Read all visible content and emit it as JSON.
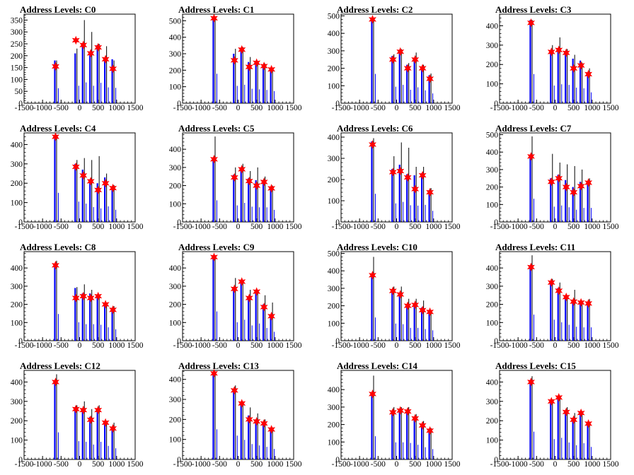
{
  "figure": {
    "background": "#ffffff"
  },
  "chart_data": [
    {
      "type": "bar",
      "title": "Address Levels: C0",
      "xlim": [
        -1500,
        1500
      ],
      "ylim": [
        0,
        375
      ],
      "yticks": [
        0,
        50,
        100,
        150,
        200,
        250,
        300,
        350
      ],
      "xticks": [
        -1500,
        -1000,
        -500,
        0,
        500,
        1000,
        1500
      ],
      "x": [
        -650,
        -100,
        100,
        300,
        500,
        700,
        900
      ],
      "peaks": [
        180,
        230,
        350,
        300,
        250,
        240,
        180
      ],
      "blue": [
        180,
        210,
        250,
        210,
        245,
        190,
        185
      ],
      "markers": [
        155,
        265,
        245,
        210,
        235,
        185,
        145
      ]
    },
    {
      "type": "bar",
      "title": "Address Levels: C1",
      "xlim": [
        -1500,
        1500
      ],
      "ylim": [
        0,
        540
      ],
      "yticks": [
        0,
        100,
        200,
        300,
        400,
        500
      ],
      "xticks": [
        -1500,
        -1000,
        -500,
        0,
        500,
        1000,
        1500
      ],
      "x": [
        -650,
        -100,
        100,
        300,
        500,
        700,
        900
      ],
      "peaks": [
        510,
        330,
        340,
        280,
        250,
        240,
        215
      ],
      "blue": [
        510,
        300,
        320,
        250,
        240,
        230,
        210
      ],
      "markers": [
        515,
        260,
        325,
        220,
        245,
        225,
        205
      ]
    },
    {
      "type": "bar",
      "title": "Address Levels: C2",
      "xlim": [
        -1500,
        1500
      ],
      "ylim": [
        0,
        510
      ],
      "yticks": [
        0,
        100,
        200,
        300,
        400,
        500
      ],
      "xticks": [
        -1500,
        -1000,
        -500,
        0,
        500,
        1000,
        1500
      ],
      "x": [
        -650,
        -100,
        100,
        300,
        500,
        700,
        900
      ],
      "peaks": [
        480,
        280,
        310,
        230,
        290,
        220,
        170
      ],
      "blue": [
        480,
        270,
        300,
        220,
        260,
        210,
        160
      ],
      "markers": [
        480,
        250,
        295,
        200,
        250,
        200,
        140
      ]
    },
    {
      "type": "bar",
      "title": "Address Levels: C3",
      "xlim": [
        -1500,
        1500
      ],
      "ylim": [
        0,
        460
      ],
      "yticks": [
        0,
        100,
        200,
        300,
        400
      ],
      "xticks": [
        -1500,
        -1000,
        -500,
        0,
        500,
        1000,
        1500
      ],
      "x": [
        -650,
        -100,
        100,
        300,
        500,
        700,
        900
      ],
      "peaks": [
        430,
        300,
        340,
        280,
        250,
        210,
        180
      ],
      "blue": [
        430,
        260,
        280,
        270,
        230,
        220,
        160
      ],
      "markers": [
        415,
        265,
        275,
        260,
        180,
        195,
        150
      ]
    },
    {
      "type": "bar",
      "title": "Address Levels: C4",
      "xlim": [
        -1500,
        1500
      ],
      "ylim": [
        0,
        460
      ],
      "yticks": [
        0,
        100,
        200,
        300,
        400
      ],
      "xticks": [
        -1500,
        -1000,
        -500,
        0,
        500,
        1000,
        1500
      ],
      "x": [
        -650,
        -100,
        100,
        300,
        500,
        700,
        900
      ],
      "peaks": [
        450,
        320,
        330,
        320,
        340,
        250,
        190
      ],
      "blue": [
        430,
        300,
        270,
        220,
        200,
        230,
        180
      ],
      "markers": [
        440,
        285,
        240,
        210,
        165,
        200,
        175
      ]
    },
    {
      "type": "bar",
      "title": "Address Levels: C5",
      "xlim": [
        -1500,
        1500
      ],
      "ylim": [
        0,
        490
      ],
      "yticks": [
        0,
        100,
        200,
        300,
        400
      ],
      "xticks": [
        -1500,
        -1000,
        -500,
        0,
        500,
        1000,
        1500
      ],
      "x": [
        -650,
        -100,
        100,
        300,
        500,
        700,
        900
      ],
      "peaks": [
        470,
        300,
        320,
        280,
        300,
        250,
        200
      ],
      "blue": [
        340,
        260,
        300,
        240,
        230,
        230,
        190
      ],
      "markers": [
        345,
        245,
        290,
        225,
        200,
        220,
        185
      ]
    },
    {
      "type": "bar",
      "title": "Address Levels: C6",
      "xlim": [
        -1500,
        1500
      ],
      "ylim": [
        0,
        420
      ],
      "yticks": [
        0,
        100,
        200,
        300,
        400
      ],
      "xticks": [
        -1500,
        -1000,
        -500,
        0,
        500,
        1000,
        1500
      ],
      "x": [
        -650,
        -100,
        100,
        300,
        500,
        700,
        900
      ],
      "peaks": [
        395,
        310,
        375,
        350,
        260,
        260,
        160
      ],
      "blue": [
        380,
        250,
        270,
        225,
        220,
        230,
        150
      ],
      "markers": [
        365,
        235,
        240,
        210,
        155,
        220,
        140
      ]
    },
    {
      "type": "bar",
      "title": "Address Levels: C7",
      "xlim": [
        -1500,
        1500
      ],
      "ylim": [
        0,
        510
      ],
      "yticks": [
        0,
        100,
        200,
        300,
        400,
        500
      ],
      "xticks": [
        -1500,
        -1000,
        -500,
        0,
        500,
        1000,
        1500
      ],
      "x": [
        -650,
        -100,
        100,
        300,
        500,
        700,
        900
      ],
      "peaks": [
        490,
        390,
        340,
        330,
        320,
        300,
        250
      ],
      "blue": [
        380,
        250,
        270,
        240,
        200,
        230,
        230
      ],
      "markers": [
        375,
        230,
        250,
        200,
        170,
        205,
        225
      ]
    },
    {
      "type": "bar",
      "title": "Address Levels: C8",
      "xlim": [
        -1500,
        1500
      ],
      "ylim": [
        0,
        490
      ],
      "yticks": [
        0,
        100,
        200,
        300,
        400
      ],
      "xticks": [
        -1500,
        -1000,
        -500,
        0,
        500,
        1000,
        1500
      ],
      "x": [
        -650,
        -100,
        100,
        300,
        500,
        700,
        900
      ],
      "peaks": [
        440,
        295,
        310,
        280,
        240,
        210,
        190
      ],
      "blue": [
        420,
        290,
        260,
        260,
        250,
        210,
        180
      ],
      "markers": [
        415,
        235,
        245,
        235,
        245,
        200,
        170
      ]
    },
    {
      "type": "bar",
      "title": "Address Levels: C9",
      "xlim": [
        -1500,
        1500
      ],
      "ylim": [
        0,
        490
      ],
      "yticks": [
        0,
        100,
        200,
        300,
        400
      ],
      "xticks": [
        -1500,
        -1000,
        -500,
        0,
        500,
        1000,
        1500
      ],
      "x": [
        -650,
        -100,
        100,
        300,
        500,
        700,
        900
      ],
      "peaks": [
        470,
        345,
        330,
        280,
        270,
        250,
        210
      ],
      "blue": [
        460,
        290,
        330,
        240,
        270,
        200,
        140
      ],
      "markers": [
        460,
        285,
        325,
        235,
        270,
        185,
        135
      ]
    },
    {
      "type": "bar",
      "title": "Address Levels: C10",
      "xlim": [
        -1500,
        1500
      ],
      "ylim": [
        0,
        510
      ],
      "yticks": [
        0,
        100,
        200,
        300,
        400,
        500
      ],
      "xticks": [
        -1500,
        -1000,
        -500,
        0,
        500,
        1000,
        1500
      ],
      "x": [
        -650,
        -100,
        100,
        300,
        500,
        700,
        900
      ],
      "peaks": [
        480,
        310,
        310,
        240,
        240,
        230,
        170
      ],
      "blue": [
        380,
        280,
        270,
        210,
        210,
        190,
        170
      ],
      "markers": [
        375,
        285,
        265,
        200,
        205,
        175,
        165
      ]
    },
    {
      "type": "bar",
      "title": "Address Levels: C11",
      "xlim": [
        -1500,
        1500
      ],
      "ylim": [
        0,
        490
      ],
      "yticks": [
        0,
        100,
        200,
        300,
        400
      ],
      "xticks": [
        -1500,
        -1000,
        -500,
        0,
        500,
        1000,
        1500
      ],
      "x": [
        -650,
        -100,
        100,
        300,
        500,
        700,
        900
      ],
      "peaks": [
        470,
        340,
        320,
        250,
        280,
        220,
        230
      ],
      "blue": [
        410,
        330,
        290,
        250,
        220,
        210,
        210
      ],
      "markers": [
        405,
        320,
        275,
        240,
        215,
        210,
        205
      ]
    },
    {
      "type": "bar",
      "title": "Address Levels: C12",
      "xlim": [
        -1500,
        1500
      ],
      "ylim": [
        0,
        460
      ],
      "yticks": [
        0,
        100,
        200,
        300,
        400
      ],
      "xticks": [
        -1500,
        -1000,
        -500,
        0,
        500,
        1000,
        1500
      ],
      "x": [
        -650,
        -100,
        100,
        300,
        500,
        700,
        900
      ],
      "peaks": [
        440,
        280,
        300,
        260,
        280,
        190,
        190
      ],
      "blue": [
        400,
        270,
        260,
        220,
        260,
        200,
        165
      ],
      "markers": [
        400,
        260,
        255,
        205,
        255,
        190,
        160
      ]
    },
    {
      "type": "bar",
      "title": "Address Levels: C13",
      "xlim": [
        -1500,
        1500
      ],
      "ylim": [
        0,
        445
      ],
      "yticks": [
        0,
        100,
        200,
        300,
        400
      ],
      "xticks": [
        -1500,
        -1000,
        -500,
        0,
        500,
        1000,
        1500
      ],
      "x": [
        -650,
        -100,
        100,
        300,
        500,
        700,
        900
      ],
      "peaks": [
        440,
        370,
        290,
        260,
        230,
        200,
        160
      ],
      "blue": [
        430,
        340,
        280,
        220,
        200,
        180,
        150
      ],
      "markers": [
        430,
        345,
        280,
        200,
        190,
        180,
        150
      ]
    },
    {
      "type": "bar",
      "title": "Address Levels: C14",
      "xlim": [
        -1500,
        1500
      ],
      "ylim": [
        0,
        510
      ],
      "yticks": [
        0,
        100,
        200,
        300,
        400
      ],
      "xticks": [
        -1500,
        -1000,
        -500,
        0,
        500,
        1000,
        1500
      ],
      "x": [
        -650,
        -100,
        100,
        300,
        500,
        700,
        900
      ],
      "peaks": [
        480,
        300,
        300,
        300,
        260,
        220,
        180
      ],
      "blue": [
        380,
        280,
        280,
        270,
        240,
        200,
        170
      ],
      "markers": [
        375,
        270,
        280,
        275,
        235,
        195,
        165
      ]
    },
    {
      "type": "bar",
      "title": "Address Levels: C15",
      "xlim": [
        -1500,
        1500
      ],
      "ylim": [
        0,
        460
      ],
      "yticks": [
        0,
        100,
        200,
        300,
        400
      ],
      "xticks": [
        -1500,
        -1000,
        -500,
        0,
        500,
        1000,
        1500
      ],
      "x": [
        -650,
        -100,
        100,
        300,
        500,
        700,
        900
      ],
      "peaks": [
        430,
        310,
        330,
        270,
        240,
        250,
        190
      ],
      "blue": [
        410,
        300,
        320,
        250,
        210,
        240,
        185
      ],
      "markers": [
        400,
        300,
        320,
        245,
        205,
        240,
        185
      ]
    }
  ]
}
